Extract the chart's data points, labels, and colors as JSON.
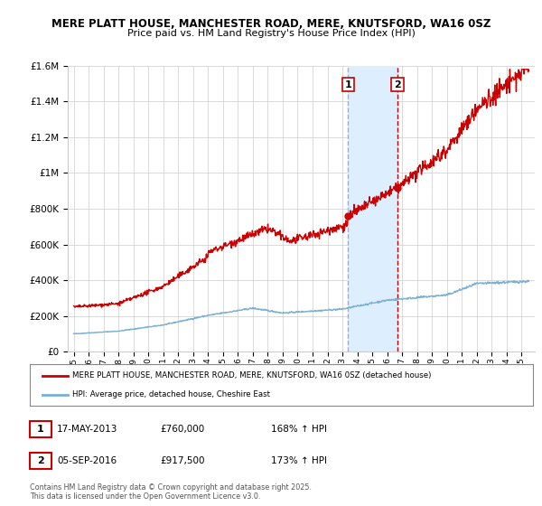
{
  "title_line1": "MERE PLATT HOUSE, MANCHESTER ROAD, MERE, KNUTSFORD, WA16 0SZ",
  "title_line2": "Price paid vs. HM Land Registry's House Price Index (HPI)",
  "legend_label1": "MERE PLATT HOUSE, MANCHESTER ROAD, MERE, KNUTSFORD, WA16 0SZ (detached house)",
  "legend_label2": "HPI: Average price, detached house, Cheshire East",
  "annotation1_label": "1",
  "annotation1_date": "17-MAY-2013",
  "annotation1_price": "£760,000",
  "annotation1_hpi": "168% ↑ HPI",
  "annotation2_label": "2",
  "annotation2_date": "05-SEP-2016",
  "annotation2_price": "£917,500",
  "annotation2_hpi": "173% ↑ HPI",
  "footnote": "Contains HM Land Registry data © Crown copyright and database right 2025.\nThis data is licensed under the Open Government Licence v3.0.",
  "line1_color": "#cc0000",
  "line2_color": "#7ab0d4",
  "shading_color": "#ddeeff",
  "vline1_color": "#aaaacc",
  "vline2_color": "#cc0000",
  "annotation_box_color": "#cc0000",
  "background_color": "#ffffff",
  "grid_color": "#cccccc",
  "ylim_max": 1600000,
  "ylim_min": 0,
  "sale1_year": 2013.37,
  "sale1_value": 760000,
  "sale2_year": 2016.68,
  "sale2_value": 917500
}
